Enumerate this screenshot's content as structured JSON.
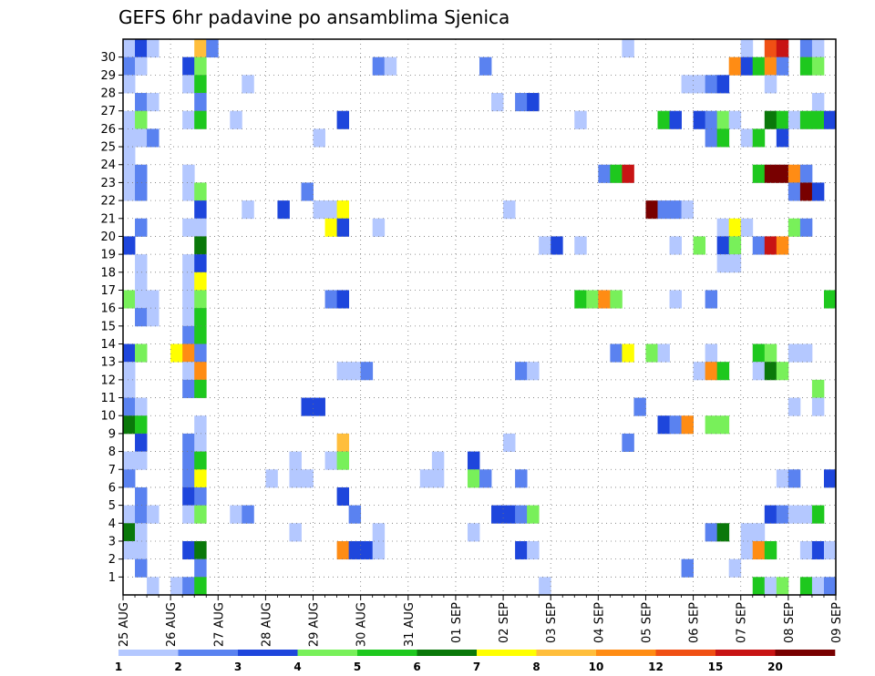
{
  "chart_data": {
    "type": "heatmap",
    "title": "GEFS 6hr padavine po ansamblima Sjenica",
    "x_tick_labels": [
      "25 AUG",
      "26 AUG",
      "27 AUG",
      "28 AUG",
      "29 AUG",
      "30 AUG",
      "31 AUG",
      "01 SEP",
      "02 SEP",
      "03 SEP",
      "04 SEP",
      "05 SEP",
      "06 SEP",
      "07 SEP",
      "08 SEP",
      "09 SEP"
    ],
    "y_tick_labels": [
      "1",
      "2",
      "3",
      "4",
      "5",
      "6",
      "7",
      "8",
      "9",
      "10",
      "11",
      "12",
      "13",
      "14",
      "15",
      "16",
      "17",
      "18",
      "19",
      "20",
      "21",
      "22",
      "23",
      "24",
      "25",
      "26",
      "27",
      "28",
      "29",
      "30"
    ],
    "y_range": [
      0,
      30
    ],
    "x_range_steps": [
      0,
      60
    ],
    "steps_per_day": 4,
    "grid": "dotted",
    "legend": {
      "placement": "bottom",
      "labels": [
        "1",
        "2",
        "3",
        "4",
        "5",
        "6",
        "7",
        "8",
        "10",
        "12",
        "15",
        "20"
      ],
      "colors": [
        "#b4c8ff",
        "#5a82f0",
        "#1e46dc",
        "#78f05a",
        "#1ec81e",
        "#0a780a",
        "#ffff00",
        "#ffbe3c",
        "#ff8c14",
        "#f05014",
        "#c81414",
        "#780000"
      ]
    },
    "cells": [
      [
        0,
        30,
        1
      ],
      [
        1,
        30,
        3
      ],
      [
        2,
        30,
        1
      ],
      [
        6,
        30,
        9
      ],
      [
        7,
        30,
        2
      ],
      [
        42,
        30,
        1
      ],
      [
        52,
        30,
        1
      ],
      [
        54,
        30,
        12
      ],
      [
        55,
        30,
        15
      ],
      [
        57,
        30,
        2
      ],
      [
        58,
        30,
        1
      ],
      [
        0,
        29,
        2
      ],
      [
        1,
        29,
        1
      ],
      [
        5,
        29,
        3
      ],
      [
        6,
        29,
        4
      ],
      [
        21,
        29,
        2
      ],
      [
        22,
        29,
        1
      ],
      [
        30,
        29,
        2
      ],
      [
        51,
        29,
        10
      ],
      [
        52,
        29,
        3
      ],
      [
        53,
        29,
        5
      ],
      [
        54,
        29,
        10
      ],
      [
        55,
        29,
        2
      ],
      [
        57,
        29,
        5
      ],
      [
        58,
        29,
        4
      ],
      [
        0,
        28,
        1
      ],
      [
        5,
        28,
        1
      ],
      [
        6,
        28,
        5
      ],
      [
        10,
        28,
        1
      ],
      [
        47,
        28,
        1
      ],
      [
        48,
        28,
        1
      ],
      [
        49,
        28,
        2
      ],
      [
        50,
        28,
        3
      ],
      [
        54,
        28,
        1
      ],
      [
        1,
        27,
        2
      ],
      [
        2,
        27,
        1
      ],
      [
        6,
        27,
        2
      ],
      [
        31,
        27,
        1
      ],
      [
        33,
        27,
        2
      ],
      [
        34,
        27,
        3
      ],
      [
        58,
        27,
        1
      ],
      [
        0,
        26,
        1
      ],
      [
        1,
        26,
        4
      ],
      [
        5,
        26,
        1
      ],
      [
        6,
        26,
        5
      ],
      [
        9,
        26,
        1
      ],
      [
        18,
        26,
        3
      ],
      [
        38,
        26,
        1
      ],
      [
        45,
        26,
        5
      ],
      [
        46,
        26,
        3
      ],
      [
        48,
        26,
        3
      ],
      [
        49,
        26,
        2
      ],
      [
        50,
        26,
        4
      ],
      [
        51,
        26,
        1
      ],
      [
        54,
        26,
        6
      ],
      [
        55,
        26,
        5
      ],
      [
        56,
        26,
        1
      ],
      [
        57,
        26,
        5
      ],
      [
        58,
        26,
        5
      ],
      [
        59,
        26,
        3
      ],
      [
        0,
        25,
        1
      ],
      [
        1,
        25,
        1
      ],
      [
        2,
        25,
        2
      ],
      [
        16,
        25,
        1
      ],
      [
        49,
        25,
        2
      ],
      [
        50,
        25,
        5
      ],
      [
        52,
        25,
        1
      ],
      [
        53,
        25,
        5
      ],
      [
        55,
        25,
        3
      ],
      [
        0,
        24,
        1
      ],
      [
        0,
        23,
        1
      ],
      [
        1,
        23,
        2
      ],
      [
        5,
        23,
        1
      ],
      [
        40,
        23,
        2
      ],
      [
        41,
        23,
        5
      ],
      [
        42,
        23,
        15
      ],
      [
        53,
        23,
        5
      ],
      [
        54,
        23,
        20
      ],
      [
        55,
        23,
        20
      ],
      [
        56,
        23,
        10
      ],
      [
        57,
        23,
        2
      ],
      [
        0,
        22,
        1
      ],
      [
        1,
        22,
        2
      ],
      [
        5,
        22,
        1
      ],
      [
        6,
        22,
        4
      ],
      [
        15,
        22,
        2
      ],
      [
        56,
        22,
        2
      ],
      [
        57,
        22,
        20
      ],
      [
        58,
        22,
        3
      ],
      [
        6,
        21,
        3
      ],
      [
        10,
        21,
        1
      ],
      [
        13,
        21,
        3
      ],
      [
        16,
        21,
        1
      ],
      [
        17,
        21,
        1
      ],
      [
        18,
        21,
        7
      ],
      [
        32,
        21,
        1
      ],
      [
        44,
        21,
        20
      ],
      [
        45,
        21,
        2
      ],
      [
        46,
        21,
        2
      ],
      [
        47,
        21,
        1
      ],
      [
        1,
        20,
        2
      ],
      [
        5,
        20,
        1
      ],
      [
        6,
        20,
        1
      ],
      [
        17,
        20,
        7
      ],
      [
        18,
        20,
        3
      ],
      [
        21,
        20,
        1
      ],
      [
        50,
        20,
        1
      ],
      [
        51,
        20,
        7
      ],
      [
        52,
        20,
        1
      ],
      [
        56,
        20,
        4
      ],
      [
        57,
        20,
        2
      ],
      [
        0,
        19,
        3
      ],
      [
        6,
        19,
        6
      ],
      [
        35,
        19,
        1
      ],
      [
        36,
        19,
        3
      ],
      [
        38,
        19,
        1
      ],
      [
        46,
        19,
        1
      ],
      [
        48,
        19,
        4
      ],
      [
        50,
        19,
        3
      ],
      [
        51,
        19,
        4
      ],
      [
        53,
        19,
        2
      ],
      [
        54,
        19,
        15
      ],
      [
        55,
        19,
        10
      ],
      [
        1,
        18,
        1
      ],
      [
        5,
        18,
        1
      ],
      [
        6,
        18,
        3
      ],
      [
        50,
        18,
        1
      ],
      [
        51,
        18,
        1
      ],
      [
        1,
        17,
        1
      ],
      [
        5,
        17,
        1
      ],
      [
        6,
        17,
        7
      ],
      [
        0,
        16,
        4
      ],
      [
        1,
        16,
        1
      ],
      [
        2,
        16,
        1
      ],
      [
        5,
        16,
        1
      ],
      [
        6,
        16,
        4
      ],
      [
        17,
        16,
        2
      ],
      [
        18,
        16,
        3
      ],
      [
        38,
        16,
        5
      ],
      [
        39,
        16,
        4
      ],
      [
        40,
        16,
        10
      ],
      [
        41,
        16,
        4
      ],
      [
        46,
        16,
        1
      ],
      [
        49,
        16,
        2
      ],
      [
        59,
        16,
        5
      ],
      [
        1,
        15,
        2
      ],
      [
        2,
        15,
        1
      ],
      [
        5,
        15,
        1
      ],
      [
        6,
        15,
        5
      ],
      [
        5,
        14,
        2
      ],
      [
        6,
        14,
        5
      ],
      [
        0,
        13,
        3
      ],
      [
        1,
        13,
        4
      ],
      [
        4,
        13,
        7
      ],
      [
        5,
        13,
        10
      ],
      [
        6,
        13,
        2
      ],
      [
        41,
        13,
        2
      ],
      [
        42,
        13,
        7
      ],
      [
        44,
        13,
        4
      ],
      [
        45,
        13,
        1
      ],
      [
        49,
        13,
        1
      ],
      [
        53,
        13,
        5
      ],
      [
        54,
        13,
        4
      ],
      [
        56,
        13,
        1
      ],
      [
        57,
        13,
        1
      ],
      [
        0,
        12,
        1
      ],
      [
        5,
        12,
        1
      ],
      [
        6,
        12,
        10
      ],
      [
        18,
        12,
        1
      ],
      [
        19,
        12,
        1
      ],
      [
        20,
        12,
        2
      ],
      [
        33,
        12,
        2
      ],
      [
        34,
        12,
        1
      ],
      [
        48,
        12,
        1
      ],
      [
        49,
        12,
        10
      ],
      [
        50,
        12,
        5
      ],
      [
        53,
        12,
        1
      ],
      [
        54,
        12,
        6
      ],
      [
        55,
        12,
        4
      ],
      [
        0,
        11,
        1
      ],
      [
        5,
        11,
        2
      ],
      [
        6,
        11,
        5
      ],
      [
        58,
        11,
        4
      ],
      [
        0,
        10,
        2
      ],
      [
        1,
        10,
        1
      ],
      [
        15,
        10,
        3
      ],
      [
        16,
        10,
        3
      ],
      [
        43,
        10,
        2
      ],
      [
        56,
        10,
        1
      ],
      [
        58,
        10,
        1
      ],
      [
        0,
        9,
        6
      ],
      [
        1,
        9,
        5
      ],
      [
        6,
        9,
        1
      ],
      [
        45,
        9,
        3
      ],
      [
        46,
        9,
        2
      ],
      [
        47,
        9,
        10
      ],
      [
        49,
        9,
        4
      ],
      [
        50,
        9,
        4
      ],
      [
        1,
        8,
        3
      ],
      [
        5,
        8,
        2
      ],
      [
        6,
        8,
        1
      ],
      [
        18,
        8,
        9
      ],
      [
        32,
        8,
        1
      ],
      [
        42,
        8,
        2
      ],
      [
        0,
        7,
        1
      ],
      [
        1,
        7,
        1
      ],
      [
        5,
        7,
        2
      ],
      [
        6,
        7,
        5
      ],
      [
        14,
        7,
        1
      ],
      [
        17,
        7,
        1
      ],
      [
        18,
        7,
        4
      ],
      [
        26,
        7,
        1
      ],
      [
        29,
        7,
        3
      ],
      [
        0,
        6,
        2
      ],
      [
        5,
        6,
        2
      ],
      [
        6,
        6,
        7
      ],
      [
        12,
        6,
        1
      ],
      [
        14,
        6,
        1
      ],
      [
        15,
        6,
        1
      ],
      [
        25,
        6,
        1
      ],
      [
        26,
        6,
        1
      ],
      [
        29,
        6,
        4
      ],
      [
        30,
        6,
        2
      ],
      [
        33,
        6,
        2
      ],
      [
        55,
        6,
        1
      ],
      [
        56,
        6,
        2
      ],
      [
        59,
        6,
        3
      ],
      [
        1,
        5,
        2
      ],
      [
        5,
        5,
        3
      ],
      [
        6,
        5,
        2
      ],
      [
        18,
        5,
        3
      ],
      [
        0,
        4,
        1
      ],
      [
        1,
        4,
        2
      ],
      [
        2,
        4,
        1
      ],
      [
        5,
        4,
        1
      ],
      [
        6,
        4,
        4
      ],
      [
        9,
        4,
        1
      ],
      [
        10,
        4,
        2
      ],
      [
        19,
        4,
        2
      ],
      [
        31,
        4,
        3
      ],
      [
        32,
        4,
        3
      ],
      [
        33,
        4,
        2
      ],
      [
        34,
        4,
        4
      ],
      [
        54,
        4,
        3
      ],
      [
        55,
        4,
        2
      ],
      [
        56,
        4,
        1
      ],
      [
        57,
        4,
        1
      ],
      [
        58,
        4,
        5
      ],
      [
        0,
        3,
        6
      ],
      [
        1,
        3,
        1
      ],
      [
        14,
        3,
        1
      ],
      [
        21,
        3,
        1
      ],
      [
        29,
        3,
        1
      ],
      [
        49,
        3,
        2
      ],
      [
        50,
        3,
        6
      ],
      [
        52,
        3,
        1
      ],
      [
        53,
        3,
        1
      ],
      [
        0,
        2,
        1
      ],
      [
        1,
        2,
        1
      ],
      [
        5,
        2,
        3
      ],
      [
        6,
        2,
        6
      ],
      [
        18,
        2,
        10
      ],
      [
        19,
        2,
        3
      ],
      [
        20,
        2,
        3
      ],
      [
        21,
        2,
        1
      ],
      [
        33,
        2,
        3
      ],
      [
        34,
        2,
        1
      ],
      [
        52,
        2,
        1
      ],
      [
        53,
        2,
        10
      ],
      [
        54,
        2,
        5
      ],
      [
        57,
        2,
        1
      ],
      [
        58,
        2,
        3
      ],
      [
        59,
        2,
        1
      ],
      [
        1,
        1,
        2
      ],
      [
        6,
        1,
        2
      ],
      [
        47,
        1,
        2
      ],
      [
        51,
        1,
        1
      ],
      [
        2,
        0,
        1
      ],
      [
        4,
        0,
        1
      ],
      [
        5,
        0,
        2
      ],
      [
        6,
        0,
        5
      ],
      [
        35,
        0,
        1
      ],
      [
        53,
        0,
        5
      ],
      [
        54,
        0,
        1
      ],
      [
        55,
        0,
        4
      ],
      [
        57,
        0,
        5
      ],
      [
        58,
        0,
        1
      ],
      [
        59,
        0,
        2
      ]
    ]
  }
}
